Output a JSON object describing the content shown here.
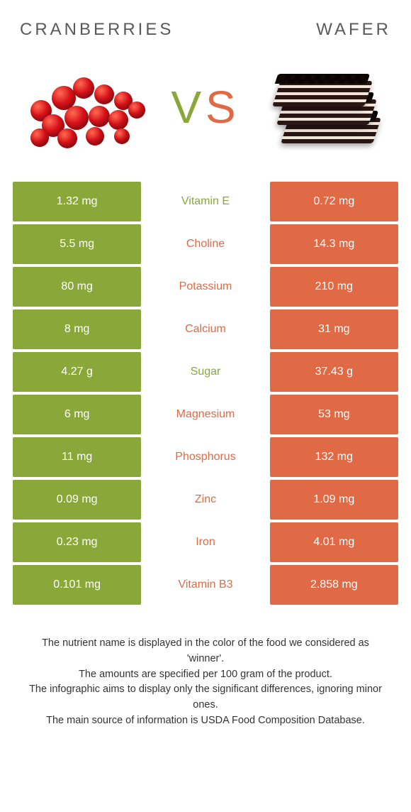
{
  "colors": {
    "left": "#8aa83a",
    "right": "#e06a45",
    "midText": {
      "left": "#8aa83a",
      "right": "#e06a45"
    }
  },
  "heading": {
    "left": "CRANBERRIES",
    "right": "WAFER"
  },
  "vs": {
    "v": "V",
    "s": "S"
  },
  "rows": [
    {
      "left": "1.32 mg",
      "label": "Vitamin E",
      "right": "0.72 mg",
      "winner": "left"
    },
    {
      "left": "5.5 mg",
      "label": "Choline",
      "right": "14.3 mg",
      "winner": "right"
    },
    {
      "left": "80 mg",
      "label": "Potassium",
      "right": "210 mg",
      "winner": "right"
    },
    {
      "left": "8 mg",
      "label": "Calcium",
      "right": "31 mg",
      "winner": "right"
    },
    {
      "left": "4.27 g",
      "label": "Sugar",
      "right": "37.43 g",
      "winner": "left"
    },
    {
      "left": "6 mg",
      "label": "Magnesium",
      "right": "53 mg",
      "winner": "right"
    },
    {
      "left": "11 mg",
      "label": "Phosphorus",
      "right": "132 mg",
      "winner": "right"
    },
    {
      "left": "0.09 mg",
      "label": "Zinc",
      "right": "1.09 mg",
      "winner": "right"
    },
    {
      "left": "0.23 mg",
      "label": "Iron",
      "right": "4.01 mg",
      "winner": "right"
    },
    {
      "left": "0.101 mg",
      "label": "Vitamin B3",
      "right": "2.858 mg",
      "winner": "right"
    }
  ],
  "footer": {
    "l1": "The nutrient name is displayed in the color of the food we considered as 'winner'.",
    "l2": "The amounts are specified per 100 gram of the product.",
    "l3": "The infographic aims to display only the significant differences, ignoring minor ones.",
    "l4": "The main source of information is USDA Food Composition Database."
  }
}
